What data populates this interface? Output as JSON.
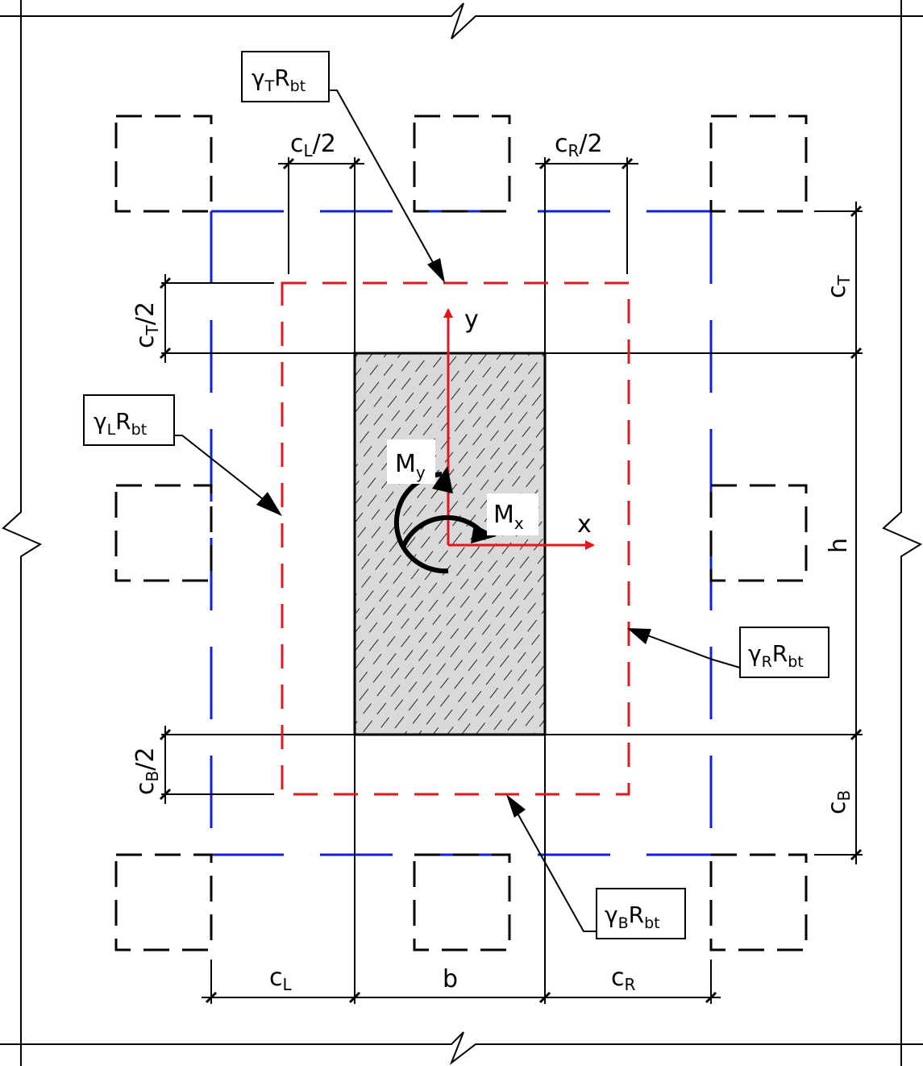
{
  "labels": {
    "top": {
      "greek": "γ",
      "sub": "T",
      "r": "R",
      "rsub": "bt"
    },
    "left": {
      "greek": "γ",
      "sub": "L",
      "r": "R",
      "rsub": "bt"
    },
    "right": {
      "greek": "γ",
      "sub": "R",
      "r": "R",
      "rsub": "bt"
    },
    "bottom": {
      "greek": "γ",
      "sub": "B",
      "r": "R",
      "rsub": "bt"
    }
  },
  "dimensions": {
    "cL_half": {
      "base": "c",
      "sub": "L",
      "tail": "/2"
    },
    "cR_half": {
      "base": "c",
      "sub": "R",
      "tail": "/2"
    },
    "cT_half": {
      "base": "c",
      "sub": "T",
      "tail": "/2"
    },
    "cB_half": {
      "base": "c",
      "sub": "B",
      "tail": "/2"
    },
    "cT": {
      "base": "c",
      "sub": "T"
    },
    "cB": {
      "base": "c",
      "sub": "B"
    },
    "h": "h",
    "cL": {
      "base": "c",
      "sub": "L"
    },
    "b": "b",
    "cR": {
      "base": "c",
      "sub": "R"
    }
  },
  "axes": {
    "x": "x",
    "y": "y"
  },
  "moments": {
    "my": {
      "base": "M",
      "sub": "y"
    },
    "mx": {
      "base": "M",
      "sub": "x"
    }
  },
  "colors": {
    "contour": "#e8141b",
    "axes_arrows": "#e8141b",
    "pile_grid": "#1020d8",
    "outline": "#000000",
    "column_fill": "#d9d9d9"
  }
}
